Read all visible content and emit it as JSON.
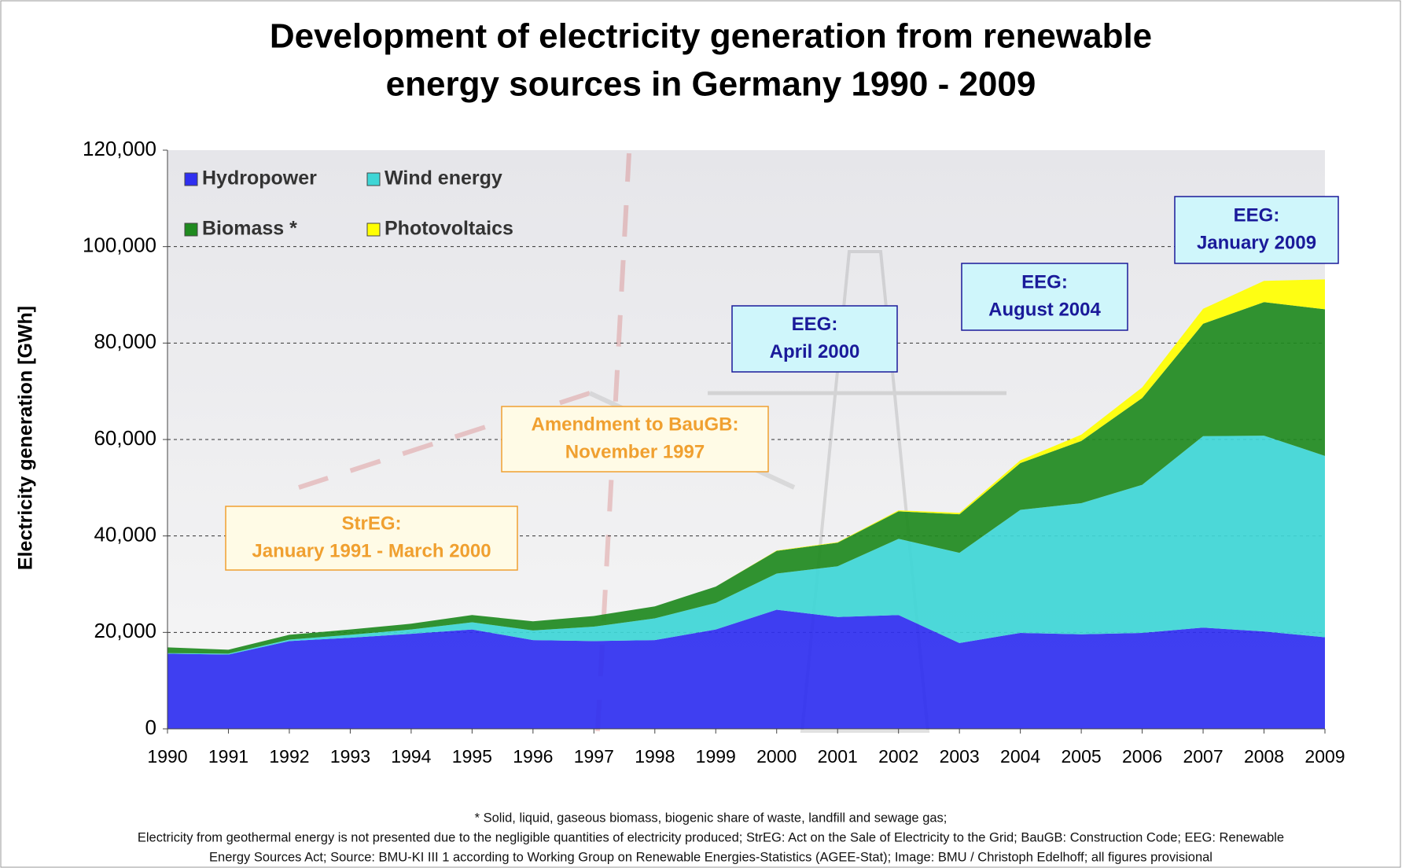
{
  "chart_data": {
    "type": "stacked-area",
    "title": [
      "Development of electricity generation from renewable",
      "energy sources in Germany 1990 - 2009"
    ],
    "y_label": "Electricity generation [GWh]",
    "categories": [
      "1990",
      "1991",
      "1992",
      "1993",
      "1994",
      "1995",
      "1996",
      "1997",
      "1998",
      "1999",
      "2000",
      "2001",
      "2002",
      "2003",
      "2004",
      "2005",
      "2006",
      "2007",
      "2008",
      "2009"
    ],
    "series": [
      {
        "name": "Hydropower",
        "color": "#2f2ff0",
        "values": [
          15600,
          15400,
          18200,
          18900,
          19700,
          20600,
          18400,
          18200,
          18400,
          20600,
          24700,
          23200,
          23600,
          17800,
          19900,
          19600,
          19900,
          21000,
          20200,
          19000
        ]
      },
      {
        "name": "Wind energy",
        "color": "#3ed6d6",
        "values": [
          100,
          200,
          300,
          600,
          900,
          1500,
          2000,
          3000,
          4500,
          5500,
          7500,
          10500,
          15800,
          18700,
          25500,
          27200,
          30700,
          39700,
          40600,
          37600
        ]
      },
      {
        "name": "Biomass *",
        "color": "#1f8a1f",
        "values": [
          1200,
          800,
          1000,
          1100,
          1200,
          1500,
          1900,
          2200,
          2500,
          3400,
          4700,
          4900,
          5700,
          8000,
          9700,
          12900,
          18000,
          23300,
          27700,
          30400
        ]
      },
      {
        "name": "Photovoltaics",
        "color": "#ffff00",
        "values": [
          0,
          0,
          0,
          0,
          0,
          0,
          0,
          0,
          0,
          0,
          100,
          100,
          200,
          300,
          600,
          1300,
          2200,
          3100,
          4400,
          6200
        ]
      }
    ],
    "ylim": [
      0,
      120000
    ],
    "yticks": [
      0,
      {
        "value": 20000,
        "label": "20,000"
      },
      {
        "value": 40000,
        "label": "40,000"
      },
      {
        "value": 60000,
        "label": "60,000"
      },
      {
        "value": 80000,
        "label": "80,000"
      },
      {
        "value": 100000,
        "label": "100,000"
      },
      {
        "value": 120000,
        "label": "120,000"
      }
    ],
    "grid": true,
    "legend": "upper-left",
    "annotations": [
      {
        "lines": [
          "StrEG:",
          "January 1991 - March 2000"
        ],
        "color": "#f0a030"
      },
      {
        "lines": [
          "Amendment to BauGB:",
          "November 1997"
        ],
        "color": "#f0a030"
      },
      {
        "lines": [
          "EEG:",
          "April 2000"
        ],
        "color": "#1a1a9a"
      },
      {
        "lines": [
          "EEG:",
          "August 2004"
        ],
        "color": "#1a1a9a"
      },
      {
        "lines": [
          "EEG:",
          "January 2009"
        ],
        "color": "#1a1a9a"
      }
    ],
    "footnotes": [
      "* Solid, liquid, gaseous biomass, biogenic share of waste, landfill and sewage gas;",
      "Electricity from geothermal energy is not presented due to the negligible quantities of electricity produced; StrEG: Act on the Sale of Electricity to the Grid; BauGB: Construction Code; EEG: Renewable",
      "Energy Sources Act; Source: BMU-KI III 1 according to Working Group on Renewable Energies-Statistics (AGEE-Stat); Image: BMU / Christoph Edelhoff; all figures provisional"
    ]
  }
}
